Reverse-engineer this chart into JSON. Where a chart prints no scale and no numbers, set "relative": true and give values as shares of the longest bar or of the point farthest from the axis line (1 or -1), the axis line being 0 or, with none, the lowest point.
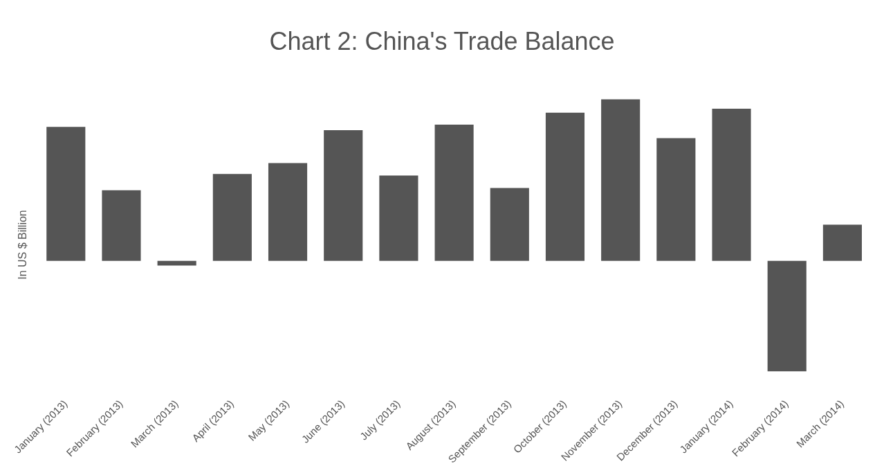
{
  "chart_data": {
    "type": "bar",
    "title": "Chart 2: China's Trade Balance",
    "ylabel": "In US $ Billion",
    "categories": [
      "January (2013)",
      "February (2013)",
      "March (2013)",
      "April (2013)",
      "May (2013)",
      "June (2013)",
      "July (2013)",
      "August (2013)",
      "September (2013)",
      "October (2013)",
      "November (2013)",
      "December (2013)",
      "January (2014)",
      "February (2014)",
      "March (2014)"
    ],
    "values": [
      0.829,
      0.437,
      -0.028,
      0.538,
      0.605,
      0.808,
      0.528,
      0.843,
      0.451,
      0.916,
      1,
      0.759,
      0.941,
      -0.682,
      0.224
    ],
    "color": "#555555",
    "relative": true,
    "grid": false,
    "legend": false
  }
}
